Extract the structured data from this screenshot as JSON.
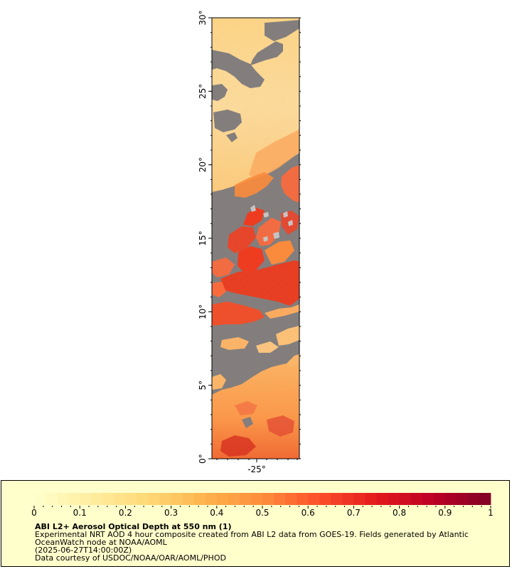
{
  "map": {
    "lat_ticks": [
      "0°",
      "5°",
      "10°",
      "15°",
      "20°",
      "25°",
      "30°"
    ],
    "lon_ticks": [
      "-25°"
    ],
    "colors": {
      "no_data": "#808080",
      "cloud": "#c8c8c8",
      "frame": "#000000"
    }
  },
  "legend": {
    "ticks": [
      "0",
      "0.1",
      "0.2",
      "0.3",
      "0.4",
      "0.5",
      "0.6",
      "0.7",
      "0.8",
      "0.9",
      "1"
    ],
    "title": "ABI L2+ Aerosol Optical Depth at 550 nm (1)",
    "desc_line1": "Experimental NRT AOD 4 hour composite created from ABI L2 data from GOES-19. Fields generated by Atlantic",
    "desc_line2": "OceanWatch node at NOAA/AOML",
    "time": "(2025-06-27T14:00:00Z)",
    "credit": "Data courtesy of USDOC/NOAA/OAR/AOML/PHOD",
    "scale_min": 0,
    "scale_max": 1,
    "colormap": [
      "#ffffcc",
      "#ffeda0",
      "#fed976",
      "#feb24c",
      "#fd8d3c",
      "#fc4e2a",
      "#e31a1c",
      "#bd0026",
      "#800026"
    ],
    "background": "#ffffcc"
  }
}
